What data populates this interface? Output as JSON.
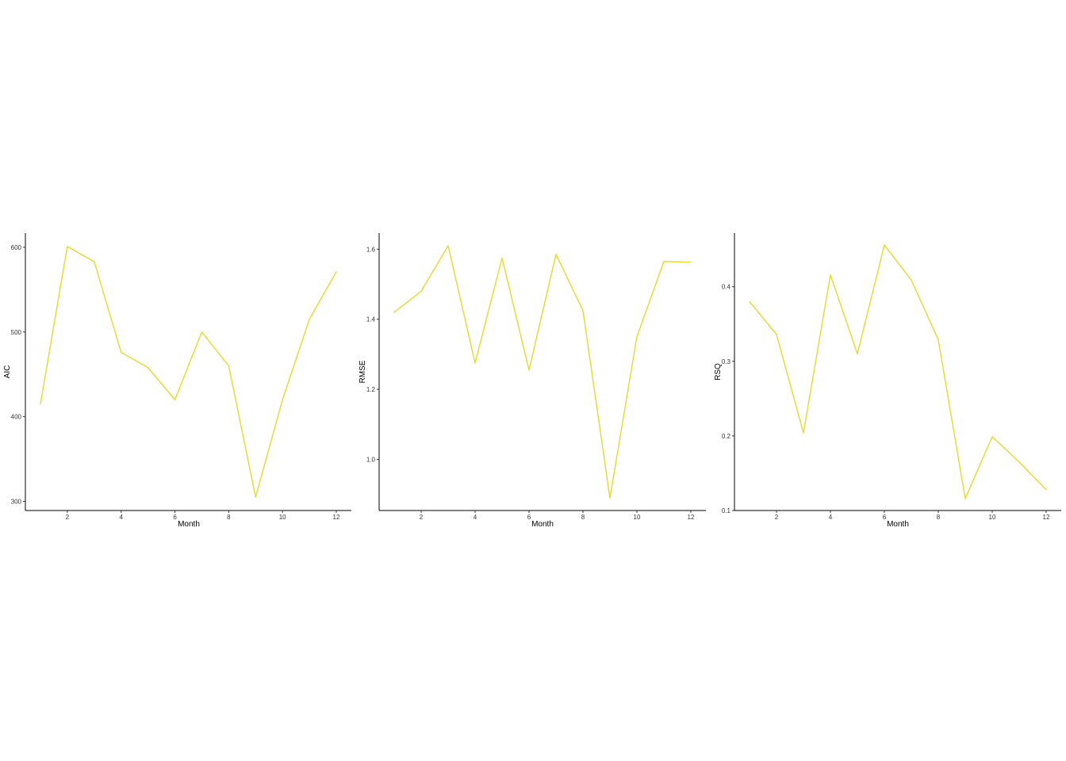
{
  "chart_data": [
    {
      "type": "line",
      "title": "",
      "xlabel": "Month",
      "ylabel": "AIC",
      "x": [
        1,
        2,
        3,
        4,
        5,
        6,
        7,
        8,
        9,
        10,
        11,
        12
      ],
      "series": [
        {
          "values": [
            415,
            601,
            583,
            476,
            458,
            420,
            500,
            460,
            305,
            420,
            515,
            571
          ]
        }
      ],
      "xlim": [
        0.44,
        12.56
      ],
      "ylim": [
        289.2,
        616.8
      ],
      "x_ticks": [
        2,
        4,
        6,
        8,
        10,
        12
      ],
      "y_ticks": [
        300,
        400,
        500,
        600
      ],
      "grid": false,
      "legend": "none",
      "line_color": "#e6d82a"
    },
    {
      "type": "line",
      "title": "",
      "xlabel": "Month",
      "ylabel": "RMSE",
      "x": [
        1,
        2,
        3,
        4,
        5,
        6,
        7,
        8,
        9,
        10,
        11,
        12
      ],
      "series": [
        {
          "values": [
            1.42,
            1.48,
            1.61,
            1.275,
            1.575,
            1.255,
            1.585,
            1.425,
            0.89,
            1.35,
            1.565,
            1.563
          ]
        }
      ],
      "xlim": [
        0.44,
        12.56
      ],
      "ylim": [
        0.854,
        1.646
      ],
      "x_ticks": [
        2,
        4,
        6,
        8,
        10,
        12
      ],
      "y_ticks": [
        1.0,
        1.2,
        1.4,
        1.6
      ],
      "y_tick_labels": [
        "1.0",
        "1.2",
        "1.4",
        "1.6"
      ],
      "grid": false,
      "legend": "none",
      "line_color": "#e6d82a"
    },
    {
      "type": "line",
      "title": "",
      "xlabel": "Month",
      "ylabel": "RSQ",
      "x": [
        1,
        2,
        3,
        4,
        5,
        6,
        7,
        8,
        9,
        10,
        11,
        12
      ],
      "series": [
        {
          "values": [
            0.38,
            0.336,
            0.204,
            0.416,
            0.31,
            0.456,
            0.409,
            0.329,
            0.116,
            0.199,
            0.165,
            0.128
          ]
        }
      ],
      "xlim": [
        0.44,
        12.56
      ],
      "ylim": [
        0.1,
        0.472
      ],
      "x_ticks": [
        2,
        4,
        6,
        8,
        10,
        12
      ],
      "y_ticks": [
        0.1,
        0.2,
        0.3,
        0.4
      ],
      "y_tick_labels": [
        "0.1",
        "0.2",
        "0.3",
        "0.4"
      ],
      "grid": false,
      "legend": "none",
      "line_color": "#e6d82a"
    }
  ]
}
